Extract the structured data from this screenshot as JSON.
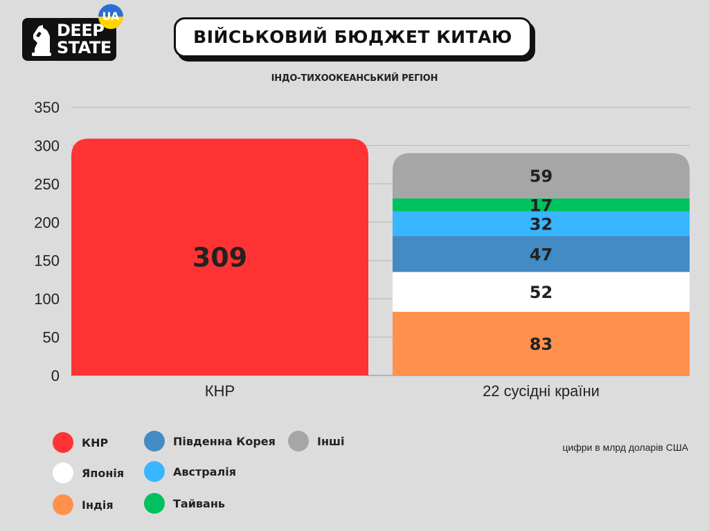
{
  "logo": {
    "line1": "DEEP",
    "line2": "STATE",
    "badge": "UA"
  },
  "title": "ВІЙСЬКОВИЙ БЮДЖЕТ КИТАЮ",
  "subtitle": "ІНДО-ТИХООКЕАНСЬКИЙ РЕГІОН",
  "note": "цифри в млрд доларів США",
  "chart_data": {
    "type": "bar",
    "stacked": true,
    "title": "ВІЙСЬКОВИЙ БЮДЖЕТ КИТАЮ",
    "subtitle": "ІНДО-ТИХООКЕАНСЬКИЙ РЕГІОН",
    "xlabel": "",
    "ylabel": "",
    "categories": [
      "КНР",
      "22 сусідні країни"
    ],
    "ylim": [
      0,
      350
    ],
    "yticks": [
      0,
      50,
      100,
      150,
      200,
      250,
      300,
      350
    ],
    "grid": true,
    "legend_position": "bottom-left",
    "series": [
      {
        "name": "КНР",
        "color": "#ff3333",
        "values": [
          309,
          0
        ]
      },
      {
        "name": "Індія",
        "color": "#ff914d",
        "values": [
          0,
          83
        ]
      },
      {
        "name": "Японія",
        "color": "#ffffff",
        "values": [
          0,
          52
        ]
      },
      {
        "name": "Південна Корея",
        "color": "#438bc4",
        "values": [
          0,
          47
        ]
      },
      {
        "name": "Австралія",
        "color": "#38b6ff",
        "values": [
          0,
          32
        ]
      },
      {
        "name": "Тайвань",
        "color": "#00c160",
        "values": [
          0,
          17
        ]
      },
      {
        "name": "Інші",
        "color": "#a6a6a6",
        "values": [
          0,
          59
        ]
      }
    ]
  },
  "legend": [
    {
      "label": "КНР",
      "color": "#ff3333"
    },
    {
      "label": "Японія",
      "color": "#ffffff"
    },
    {
      "label": "Індія",
      "color": "#ff914d"
    },
    {
      "label": "Південна Корея",
      "color": "#438bc4"
    },
    {
      "label": "Австралія",
      "color": "#38b6ff"
    },
    {
      "label": "Тайвань",
      "color": "#00c160"
    },
    {
      "label": "Інші",
      "color": "#a6a6a6"
    }
  ]
}
